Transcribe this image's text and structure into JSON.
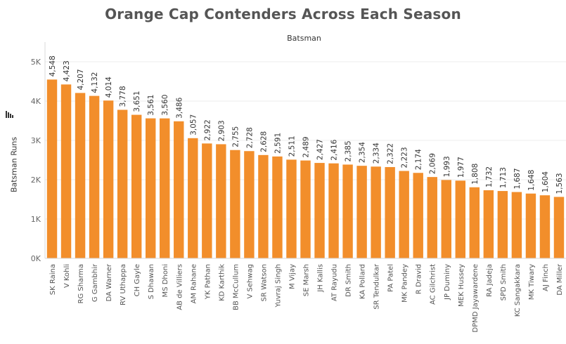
{
  "chart_data": {
    "type": "bar",
    "title": "Orange Cap Contenders Across Each Season",
    "column_header": "Batsman",
    "ylabel": "Batsman Runs",
    "ylim": [
      0,
      5500
    ],
    "yticks": [
      0,
      1000,
      2000,
      3000,
      4000,
      5000
    ],
    "ytick_labels": [
      "0K",
      "1K",
      "2K",
      "3K",
      "4K",
      "5K"
    ],
    "bar_color": "#f28e2b",
    "grid": true,
    "categories": [
      "SK Raina",
      "V Kohli",
      "RG Sharma",
      "G Gambhir",
      "DA Warner",
      "RV Uthappa",
      "CH Gayle",
      "S Dhawan",
      "MS Dhoni",
      "AB de Villiers",
      "AM Rahane",
      "YK Pathan",
      "KD Karthik",
      "BB McCullum",
      "V Sehwag",
      "SR Watson",
      "Yuvraj Singh",
      "M Vijay",
      "SE Marsh",
      "JH Kallis",
      "AT Rayudu",
      "DR Smith",
      "KA Pollard",
      "SR Tendulkar",
      "PA Patel",
      "MK Pandey",
      "R Dravid",
      "AC Gilchrist",
      "JP Duminy",
      "MEK Hussey",
      "DPMD Jayawardene",
      "RA Jadeja",
      "SPD Smith",
      "KC Sangakkara",
      "MK Tiwary",
      "AJ Finch",
      "DA Miller"
    ],
    "values": [
      4548,
      4423,
      4207,
      4132,
      4014,
      3778,
      3651,
      3561,
      3560,
      3486,
      3057,
      2922,
      2903,
      2755,
      2728,
      2628,
      2591,
      2511,
      2489,
      2427,
      2416,
      2385,
      2354,
      2334,
      2322,
      2223,
      2174,
      2069,
      1993,
      1977,
      1808,
      1732,
      1713,
      1687,
      1648,
      1604,
      1563
    ],
    "value_labels": [
      "4,548",
      "4,423",
      "4,207",
      "4,132",
      "4,014",
      "3,778",
      "3,651",
      "3,561",
      "3,560",
      "3,486",
      "3,057",
      "2,922",
      "2,903",
      "2,755",
      "2,728",
      "2,628",
      "2,591",
      "2,511",
      "2,489",
      "2,427",
      "2,416",
      "2,385",
      "2,354",
      "2,334",
      "2,322",
      "2,223",
      "2,174",
      "2,069",
      "1,993",
      "1,977",
      "1,808",
      "1,732",
      "1,713",
      "1,687",
      "1,648",
      "1,604",
      "1,563"
    ]
  },
  "icons": {
    "sort": "sort-descending-icon"
  }
}
